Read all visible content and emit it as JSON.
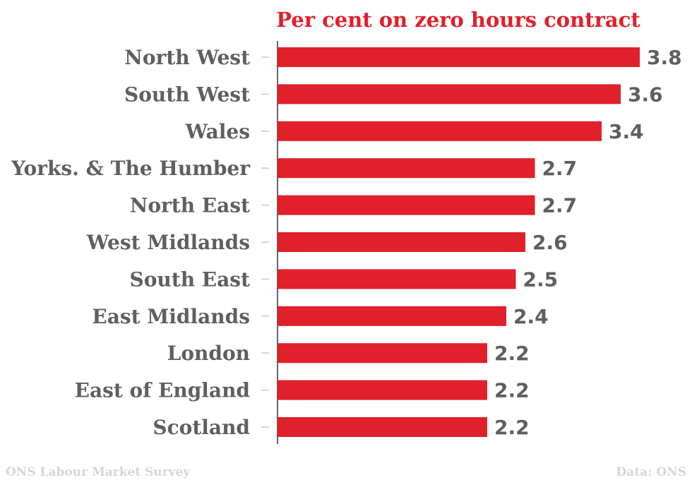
{
  "chart_data": {
    "type": "bar",
    "orientation": "horizontal",
    "title": "Per cent on zero hours contract",
    "categories": [
      "North West",
      "South West",
      "Wales",
      "Yorks. & The Humber",
      "North East",
      "West Midlands",
      "South East",
      "East Midlands",
      "London",
      "East of England",
      "Scotland"
    ],
    "values": [
      3.8,
      3.6,
      3.4,
      2.7,
      2.7,
      2.6,
      2.5,
      2.4,
      2.2,
      2.2,
      2.2
    ],
    "value_labels": [
      "3.8",
      "3.6",
      "3.4",
      "2.7",
      "2.7",
      "2.6",
      "2.5",
      "2.4",
      "2.2",
      "2.2",
      "2.2"
    ],
    "xlim": [
      0,
      3.8
    ],
    "grid": false,
    "bar_color": "#e0202a",
    "text_color": "#5f5f5f"
  },
  "footer": {
    "source_left": "ONS Labour Market Survey",
    "source_right": "Data: ONS"
  }
}
